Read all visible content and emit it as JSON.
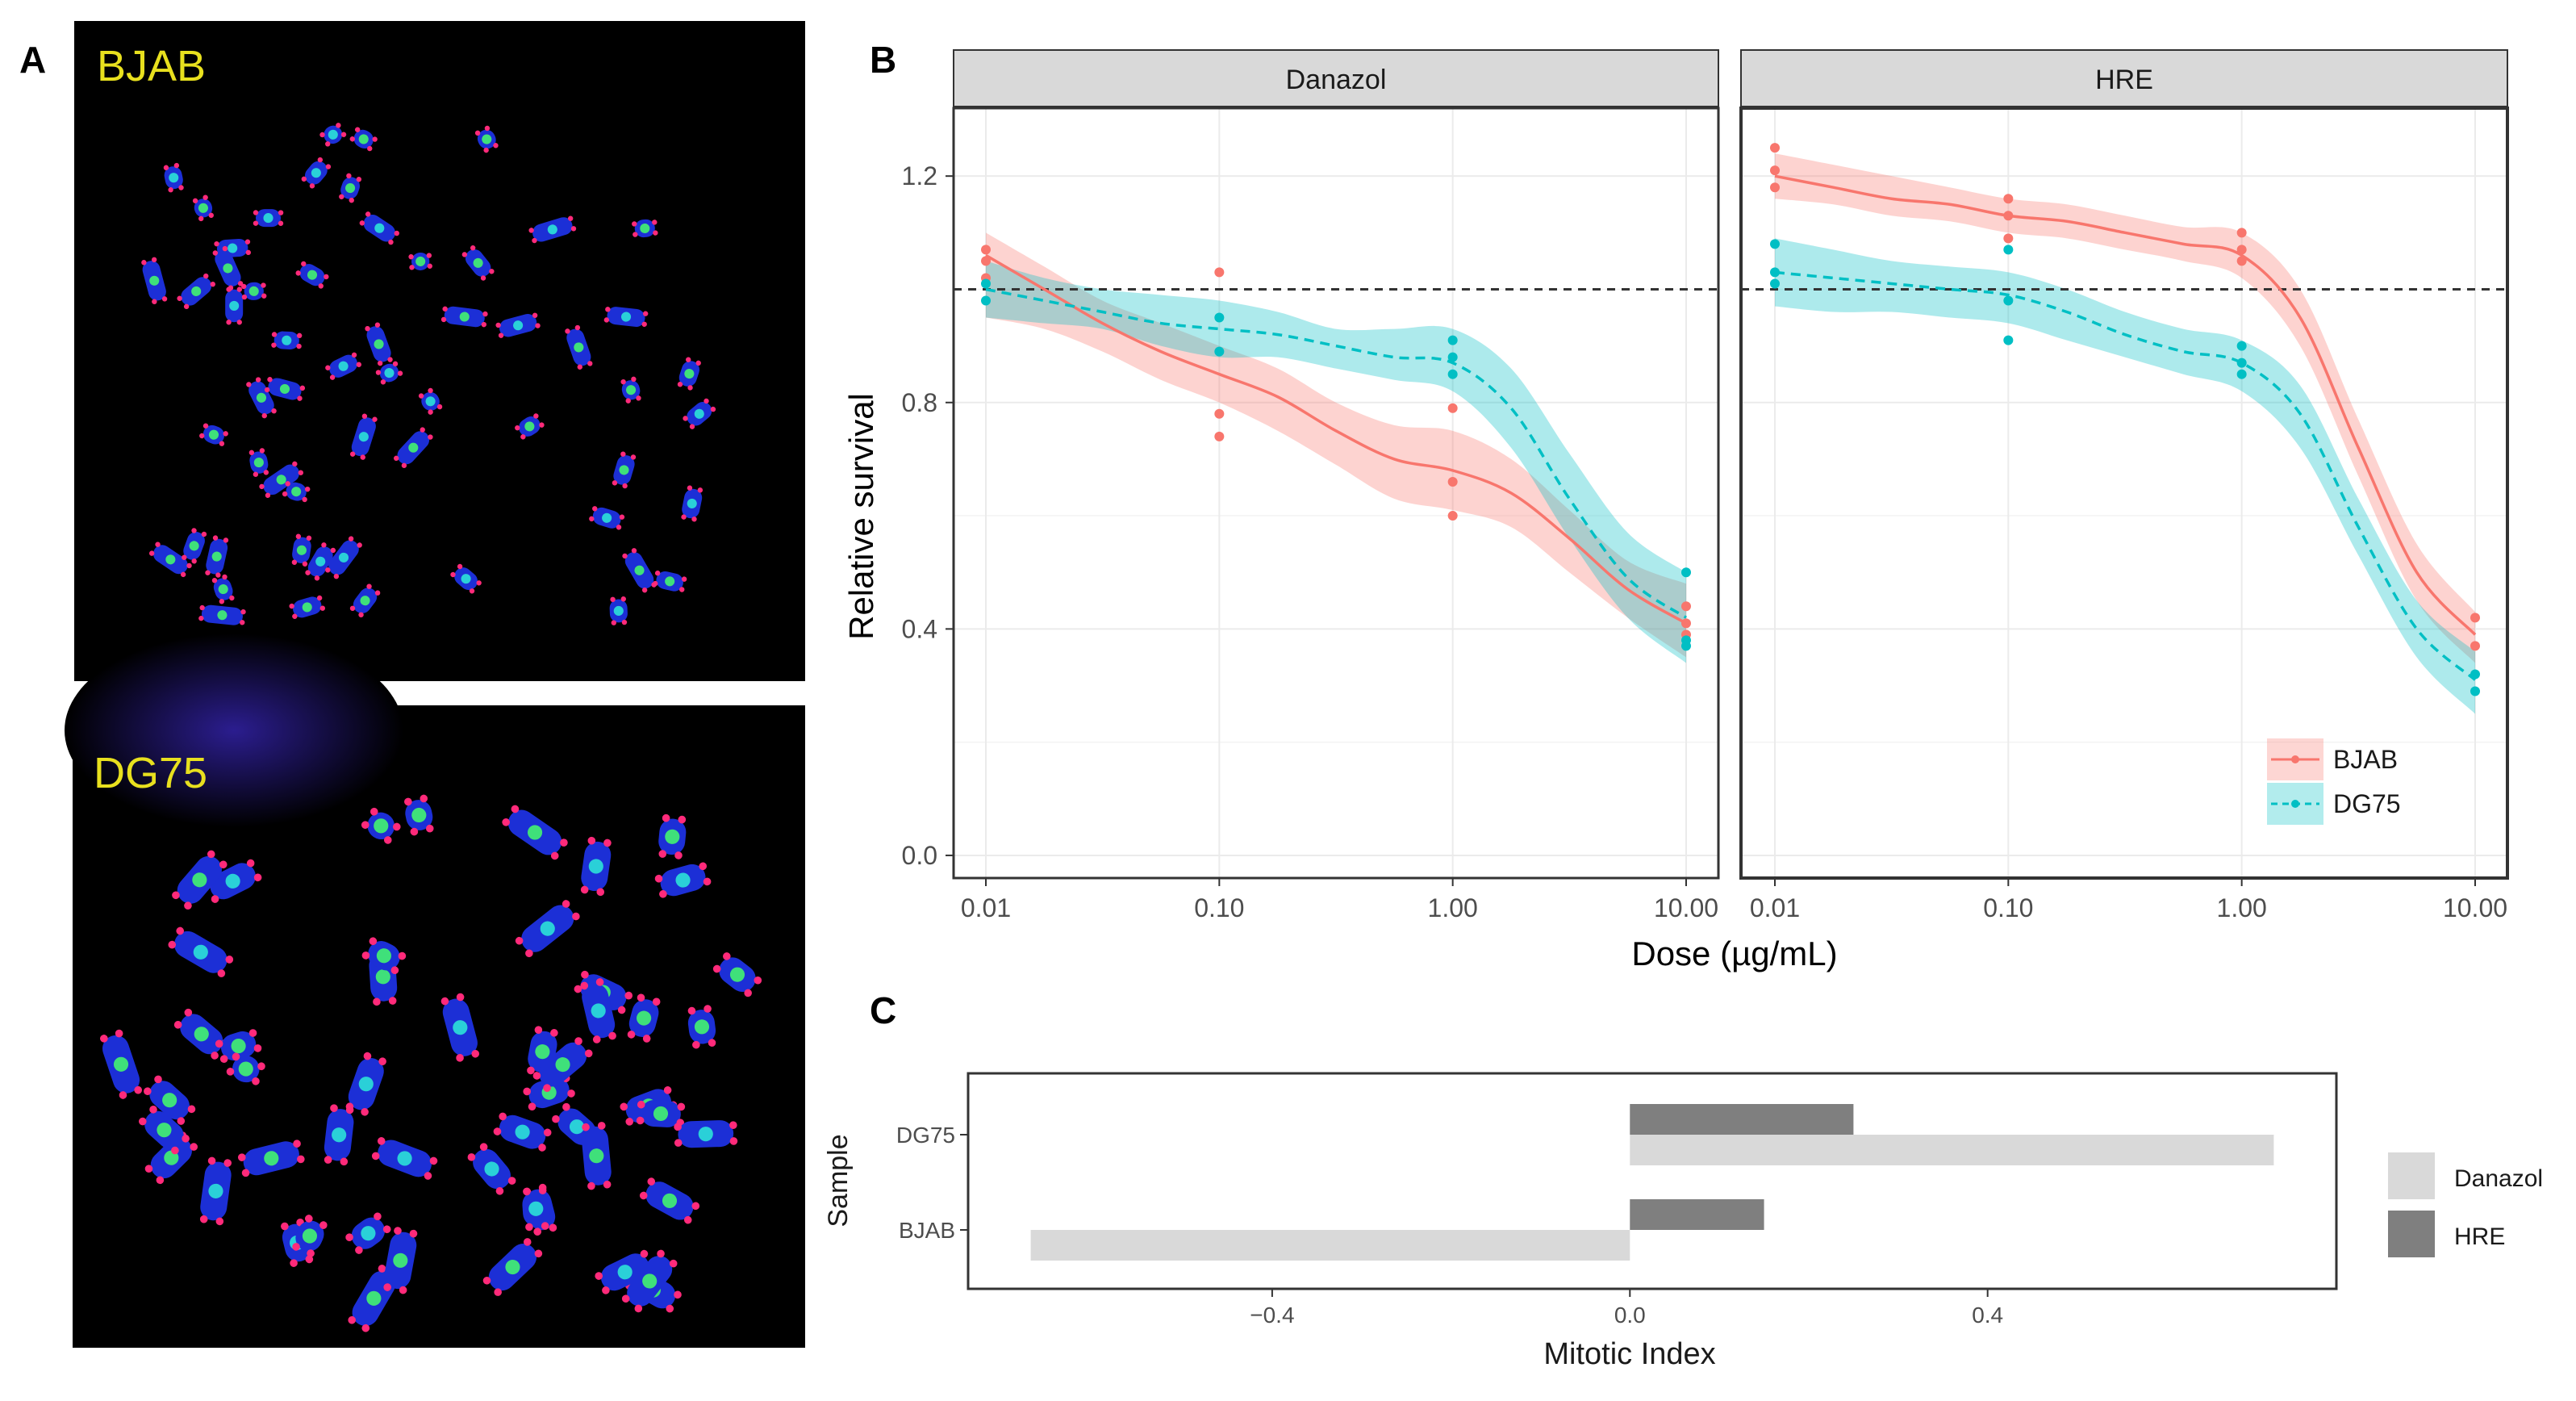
{
  "panel_labels": {
    "a": "A",
    "b": "B",
    "c": "C"
  },
  "panel_a": {
    "images": [
      {
        "label": "BJAB",
        "description_icon": "metaphase-spread-image"
      },
      {
        "label": "DG75",
        "description_icon": "metaphase-spread-image"
      }
    ]
  },
  "colors": {
    "bjab": "#F8766D",
    "dg75": "#00BFC4",
    "bjab_band": "#F8766D",
    "dg75_band": "#00BFC4",
    "danazol_bar": "#d9d9d9",
    "hre_bar": "#7f7f7f",
    "strip": "#d9d9d9",
    "chromosome": "#1c2fd6"
  },
  "chart_data": [
    {
      "type": "line",
      "panel": "B",
      "facets": [
        "Danazol",
        "HRE"
      ],
      "xlabel": "Dose (µg/mL)",
      "ylabel": "Relative survival",
      "x_scale": "log10",
      "x_ticks": [
        "0.01",
        "0.10",
        "1.00",
        "10.00"
      ],
      "x_tick_values": [
        0.01,
        0.1,
        1,
        10
      ],
      "y_ticks": [
        "0.0",
        "0.4",
        "0.8",
        "1.2"
      ],
      "y_tick_values": [
        0.0,
        0.4,
        0.8,
        1.2
      ],
      "ylim": [
        -0.04,
        1.32
      ],
      "reference_line": 1.0,
      "legend": {
        "position": "bottom-right-inside",
        "entries": [
          "BJAB",
          "DG75"
        ]
      },
      "series": [
        {
          "name": "BJAB",
          "facet": "Danazol",
          "style": "solid",
          "points": [
            [
              0.01,
              1.07
            ],
            [
              0.01,
              1.05
            ],
            [
              0.01,
              1.02
            ],
            [
              0.1,
              1.03
            ],
            [
              0.1,
              0.78
            ],
            [
              0.1,
              0.74
            ],
            [
              1,
              0.79
            ],
            [
              1,
              0.66
            ],
            [
              1,
              0.6
            ],
            [
              10,
              0.44
            ],
            [
              10,
              0.41
            ],
            [
              10,
              0.39
            ]
          ],
          "fit": [
            [
              0.01,
              1.06
            ],
            [
              0.0178,
              1.0
            ],
            [
              0.0316,
              0.94
            ],
            [
              0.0562,
              0.89
            ],
            [
              0.1,
              0.85
            ],
            [
              0.178,
              0.81
            ],
            [
              0.316,
              0.75
            ],
            [
              0.562,
              0.7
            ],
            [
              1,
              0.68
            ],
            [
              1.78,
              0.64
            ],
            [
              3.16,
              0.56
            ],
            [
              5.62,
              0.47
            ],
            [
              10,
              0.41
            ]
          ],
          "band_upper": [
            1.1,
            1.04,
            0.98,
            0.94,
            0.9,
            0.86,
            0.8,
            0.76,
            0.75,
            0.7,
            0.61,
            0.52,
            0.48
          ],
          "band_lower": [
            0.95,
            0.93,
            0.89,
            0.84,
            0.8,
            0.75,
            0.69,
            0.63,
            0.61,
            0.58,
            0.5,
            0.42,
            0.35
          ]
        },
        {
          "name": "DG75",
          "facet": "Danazol",
          "style": "dashed",
          "points": [
            [
              0.01,
              1.01
            ],
            [
              0.01,
              0.98
            ],
            [
              0.1,
              0.95
            ],
            [
              0.1,
              0.89
            ],
            [
              1,
              0.91
            ],
            [
              1,
              0.88
            ],
            [
              1,
              0.85
            ],
            [
              10,
              0.5
            ],
            [
              10,
              0.38
            ],
            [
              10,
              0.37
            ]
          ],
          "fit": [
            [
              0.01,
              1.0
            ],
            [
              0.0178,
              0.98
            ],
            [
              0.0316,
              0.96
            ],
            [
              0.0562,
              0.94
            ],
            [
              0.1,
              0.93
            ],
            [
              0.178,
              0.92
            ],
            [
              0.316,
              0.9
            ],
            [
              0.562,
              0.88
            ],
            [
              1,
              0.87
            ],
            [
              1.78,
              0.79
            ],
            [
              3.16,
              0.63
            ],
            [
              5.62,
              0.49
            ],
            [
              10,
              0.42
            ]
          ],
          "band_upper": [
            1.05,
            1.02,
            1.0,
            0.99,
            0.98,
            0.96,
            0.93,
            0.93,
            0.93,
            0.86,
            0.71,
            0.57,
            0.5
          ],
          "band_lower": [
            0.95,
            0.94,
            0.93,
            0.9,
            0.88,
            0.88,
            0.86,
            0.84,
            0.82,
            0.72,
            0.56,
            0.42,
            0.34
          ]
        },
        {
          "name": "BJAB",
          "facet": "HRE",
          "style": "solid",
          "points": [
            [
              0.01,
              1.25
            ],
            [
              0.01,
              1.21
            ],
            [
              0.01,
              1.18
            ],
            [
              0.1,
              1.16
            ],
            [
              0.1,
              1.13
            ],
            [
              0.1,
              1.09
            ],
            [
              1,
              1.1
            ],
            [
              1,
              1.07
            ],
            [
              1,
              1.05
            ],
            [
              10,
              0.42
            ],
            [
              10,
              0.37
            ]
          ],
          "fit": [
            [
              0.01,
              1.2
            ],
            [
              0.0178,
              1.18
            ],
            [
              0.0316,
              1.16
            ],
            [
              0.0562,
              1.15
            ],
            [
              0.1,
              1.13
            ],
            [
              0.178,
              1.12
            ],
            [
              0.316,
              1.1
            ],
            [
              0.562,
              1.08
            ],
            [
              1,
              1.06
            ],
            [
              1.78,
              0.95
            ],
            [
              3.16,
              0.72
            ],
            [
              5.62,
              0.5
            ],
            [
              10,
              0.39
            ]
          ],
          "band_upper": [
            1.24,
            1.22,
            1.2,
            1.18,
            1.16,
            1.15,
            1.13,
            1.11,
            1.1,
            1.0,
            0.77,
            0.55,
            0.43
          ],
          "band_lower": [
            1.16,
            1.15,
            1.13,
            1.12,
            1.1,
            1.09,
            1.07,
            1.05,
            1.02,
            0.9,
            0.67,
            0.45,
            0.34
          ]
        },
        {
          "name": "DG75",
          "facet": "HRE",
          "style": "dashed",
          "points": [
            [
              0.01,
              1.08
            ],
            [
              0.01,
              1.03
            ],
            [
              0.01,
              1.01
            ],
            [
              0.1,
              1.07
            ],
            [
              0.1,
              0.98
            ],
            [
              0.1,
              0.91
            ],
            [
              1,
              0.9
            ],
            [
              1,
              0.87
            ],
            [
              1,
              0.85
            ],
            [
              10,
              0.32
            ],
            [
              10,
              0.29
            ]
          ],
          "fit": [
            [
              0.01,
              1.03
            ],
            [
              0.0178,
              1.02
            ],
            [
              0.0316,
              1.01
            ],
            [
              0.0562,
              1.0
            ],
            [
              0.1,
              0.99
            ],
            [
              0.178,
              0.96
            ],
            [
              0.316,
              0.92
            ],
            [
              0.562,
              0.89
            ],
            [
              1,
              0.87
            ],
            [
              1.78,
              0.78
            ],
            [
              3.16,
              0.58
            ],
            [
              5.62,
              0.4
            ],
            [
              10,
              0.31
            ]
          ],
          "band_upper": [
            1.09,
            1.07,
            1.05,
            1.04,
            1.03,
            1.0,
            0.96,
            0.93,
            0.91,
            0.83,
            0.63,
            0.45,
            0.36
          ],
          "band_lower": [
            0.97,
            0.96,
            0.96,
            0.95,
            0.94,
            0.91,
            0.88,
            0.85,
            0.82,
            0.72,
            0.53,
            0.35,
            0.25
          ]
        }
      ]
    },
    {
      "type": "bar",
      "panel": "C",
      "orientation": "horizontal",
      "xlabel": "Mitotic Index",
      "ylabel": "Sample",
      "categories": [
        "DG75",
        "BJAB"
      ],
      "x_ticks": [
        "−0.4",
        "0.0",
        "0.4"
      ],
      "x_tick_values": [
        -0.4,
        0.0,
        0.4
      ],
      "xlim": [
        -0.74,
        0.79
      ],
      "legend": {
        "position": "right",
        "entries": [
          "Danazol",
          "HRE"
        ]
      },
      "series": [
        {
          "name": "Danazol",
          "values": [
            0.72,
            -0.67
          ]
        },
        {
          "name": "HRE",
          "values": [
            0.25,
            0.15
          ]
        }
      ]
    }
  ]
}
